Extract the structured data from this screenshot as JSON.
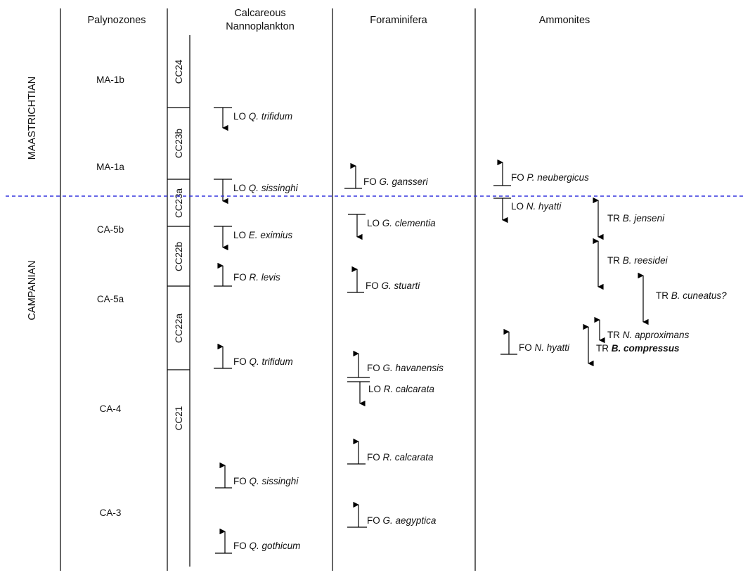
{
  "headers": {
    "palynozones": "Palynozones",
    "nanno_line1": "Calcareous",
    "nanno_line2": "Nannoplankton",
    "foraminifera": "Foraminifera",
    "ammonites": "Ammonites"
  },
  "stages": {
    "upper": "MAASTRICHTIAN",
    "lower": "CAMPANIAN"
  },
  "palynozones": [
    "MA-1b",
    "MA-1a",
    "CA-5b",
    "CA-5a",
    "CA-4",
    "CA-3"
  ],
  "nanno_zones": [
    "CC24",
    "CC23b",
    "CC23a",
    "CC22b",
    "CC22a",
    "CC21"
  ],
  "boundary_color": "#3333dd",
  "nanno_events": [
    {
      "type": "LO",
      "genus": "Q.",
      "species": "trifidum"
    },
    {
      "type": "LO",
      "genus": "Q.",
      "species": "sissinghi"
    },
    {
      "type": "LO",
      "genus": "E.",
      "species": "eximius"
    },
    {
      "type": "FO",
      "genus": "R.",
      "species": "levis"
    },
    {
      "type": "FO",
      "genus": "Q.",
      "species": "trifidum"
    },
    {
      "type": "FO",
      "genus": "Q.",
      "species": "sissinghi"
    },
    {
      "type": "FO",
      "genus": "Q.",
      "species": "gothicum"
    }
  ],
  "foram_events": [
    {
      "type": "FO",
      "genus": "G.",
      "species": "gansseri"
    },
    {
      "type": "LO",
      "genus": "G.",
      "species": "clementia"
    },
    {
      "type": "FO",
      "genus": "G.",
      "species": "stuarti"
    },
    {
      "type": "FO",
      "genus": "G.",
      "species": "havanensis"
    },
    {
      "type": "LO",
      "genus": "R.",
      "species": "calcarata"
    },
    {
      "type": "FO",
      "genus": "R.",
      "species": "calcarata"
    },
    {
      "type": "FO",
      "genus": "G.",
      "species": "aegyptica"
    }
  ],
  "ammonite_events": [
    {
      "type": "FO",
      "genus": "P.",
      "species": "neubergicus"
    },
    {
      "type": "LO",
      "genus": "N.",
      "species": "hyatti"
    },
    {
      "type": "FO",
      "genus": "N.",
      "species": "hyatti"
    }
  ],
  "ammonite_ranges": [
    {
      "type": "TR",
      "genus": "B.",
      "species": "jenseni"
    },
    {
      "type": "TR",
      "genus": "B.",
      "species": "reesidei"
    },
    {
      "type": "TR",
      "genus": "B.",
      "species": "cuneatus?"
    },
    {
      "type": "TR",
      "genus": "N.",
      "species": "approximans"
    },
    {
      "type": "TR",
      "genus": "B.",
      "species": "compressus"
    }
  ]
}
